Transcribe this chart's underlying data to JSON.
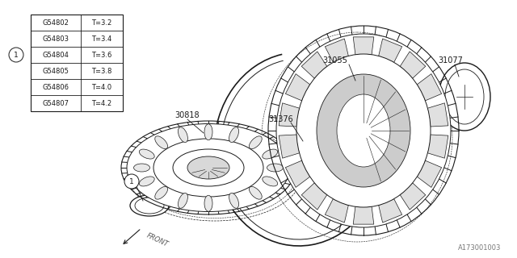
{
  "bg_color": "#ffffff",
  "table_rows": [
    [
      "G54802",
      "T=3.2"
    ],
    [
      "G54803",
      "T=3.4"
    ],
    [
      "G54804",
      "T=3.6"
    ],
    [
      "G54805",
      "T=3.8"
    ],
    [
      "G54806",
      "T=4.0"
    ],
    [
      "G54807",
      "T=4.2"
    ]
  ],
  "line_color": "#1a1a1a",
  "diagram_ref": "A173001003",
  "fig_width": 6.4,
  "fig_height": 3.2,
  "dpi": 100
}
